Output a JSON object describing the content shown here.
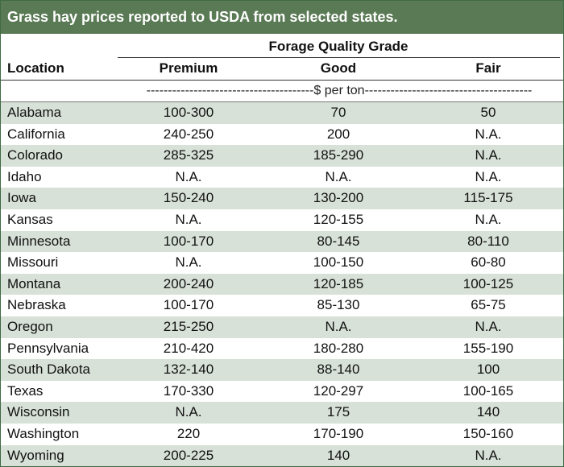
{
  "title": "Grass hay prices reported to USDA from selected states.",
  "group_header": "Forage Quality Grade",
  "columns": {
    "location": "Location",
    "premium": "Premium",
    "good": "Good",
    "fair": "Fair"
  },
  "unit_line": "---------------------------------------$ per ton---------------------------------------",
  "rows": [
    {
      "location": "Alabama",
      "premium": "100-300",
      "good": "70",
      "fair": "50"
    },
    {
      "location": "California",
      "premium": "240-250",
      "good": "200",
      "fair": "N.A."
    },
    {
      "location": "Colorado",
      "premium": "285-325",
      "good": "185-290",
      "fair": "N.A."
    },
    {
      "location": "Idaho",
      "premium": "N.A.",
      "good": "N.A.",
      "fair": "N.A."
    },
    {
      "location": "Iowa",
      "premium": "150-240",
      "good": "130-200",
      "fair": "115-175"
    },
    {
      "location": "Kansas",
      "premium": "N.A.",
      "good": "120-155",
      "fair": "N.A."
    },
    {
      "location": "Minnesota",
      "premium": "100-170",
      "good": "80-145",
      "fair": "80-110"
    },
    {
      "location": "Missouri",
      "premium": "N.A.",
      "good": "100-150",
      "fair": "60-80"
    },
    {
      "location": "Montana",
      "premium": "200-240",
      "good": "120-185",
      "fair": "100-125"
    },
    {
      "location": "Nebraska",
      "premium": "100-170",
      "good": "85-130",
      "fair": "65-75"
    },
    {
      "location": "Oregon",
      "premium": "215-250",
      "good": "N.A.",
      "fair": "N.A."
    },
    {
      "location": "Pennsylvania",
      "premium": "210-420",
      "good": "180-280",
      "fair": "155-190"
    },
    {
      "location": "South Dakota",
      "premium": "132-140",
      "good": "88-140",
      "fair": "100"
    },
    {
      "location": "Texas",
      "premium": "170-330",
      "good": "120-297",
      "fair": "100-165"
    },
    {
      "location": "Wisconsin",
      "premium": "N.A.",
      "good": "175",
      "fair": "140"
    },
    {
      "location": "Washington",
      "premium": "220",
      "good": "170-190",
      "fair": "150-160"
    },
    {
      "location": "Wyoming",
      "premium": "200-225",
      "good": "140",
      "fair": "N.A."
    }
  ],
  "colors": {
    "title_bg": "#5a7a55",
    "row_shade": "#d7e1d7",
    "border": "#3f6a44"
  }
}
